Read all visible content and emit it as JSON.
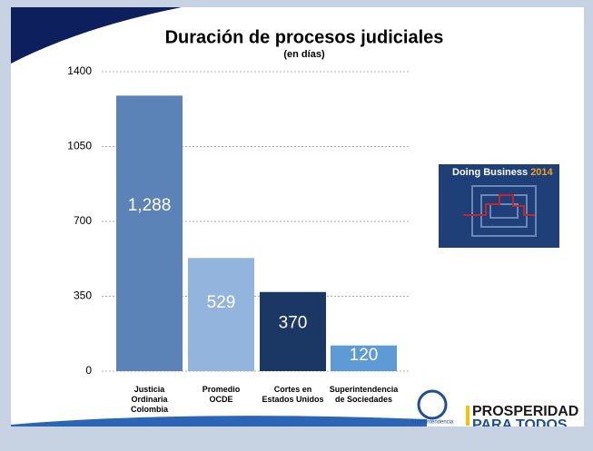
{
  "chart_data": {
    "type": "bar",
    "title": "Duración de procesos judiciales",
    "subtitle": "(en días)",
    "categories": [
      "Justicia\nOrdinaria\nColombia",
      "Promedio\nOCDE",
      "Cortes en\nEstados Unidos",
      "Superintendencia\nde Sociedades"
    ],
    "values": [
      1288,
      529,
      370,
      120
    ],
    "value_labels": [
      "1,288",
      "529",
      "370",
      "120"
    ],
    "colors": [
      "#5b83b8",
      "#93b4dc",
      "#1b3764",
      "#5e9bd6"
    ],
    "ylim": [
      0,
      1400
    ],
    "yticks": [
      0,
      350,
      700,
      1050,
      1400
    ],
    "grid": true
  },
  "logos": {
    "doing_business": "Doing Business",
    "doing_business_year": "2014",
    "superintendencia": "Superintendencia",
    "prosperidad": "PROSPERIDAD",
    "para_todos": "PARA TODOS"
  }
}
